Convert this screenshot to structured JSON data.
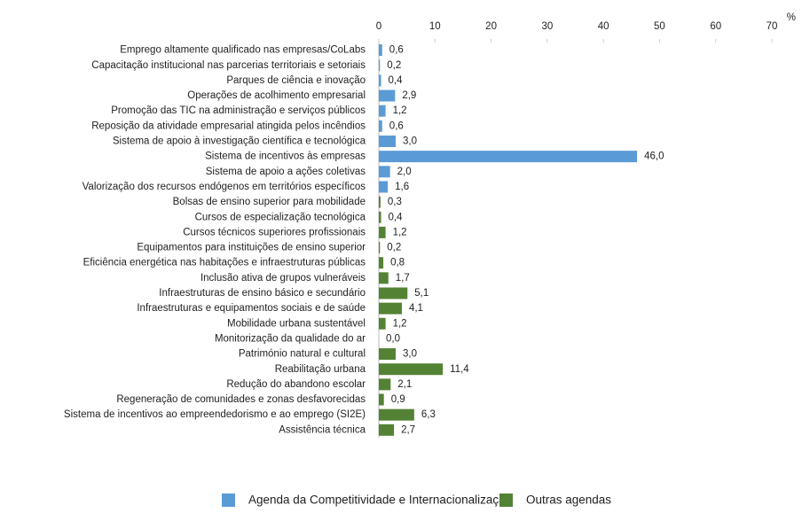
{
  "chart_data": {
    "type": "hbar",
    "x_label": "%",
    "categories": [
      "Emprego altamente qualificado nas empresas/CoLabs",
      "Capacitação institucional nas parcerias territoriais e setoriais",
      "Parques de ciência e inovação",
      "Operações de acolhimento empresarial",
      "Promoção das TIC na administração e serviços públicos",
      "Reposição da atividade empresarial atingida pelos incêndios",
      "Sistema de apoio à investigação científica e tecnológica",
      "Sistema de incentivos às empresas",
      "Sistema de apoio a ações coletivas",
      "Valorização dos recursos endógenos em territórios específicos",
      "Bolsas de ensino superior para mobilidade",
      "Cursos de especialização tecnológica",
      "Cursos técnicos superiores profissionais",
      "Equipamentos para instituições de ensino superior",
      "Eficiência energética nas habitações e infraestruturas públicas",
      "Inclusão ativa de grupos vulneráveis",
      "Infraestruturas de ensino básico e secundário",
      "Infraestruturas e equipamentos sociais e de saúde",
      "Mobilidade urbana sustentável",
      "Monitorização da qualidade do ar",
      "Património natural e cultural",
      "Reabilitação urbana",
      "Redução do abandono escolar",
      "Regeneração de comunidades e zonas desfavorecidas",
      "Sistema de incentivos ao empreendedorismo e ao emprego (SI2E)",
      "Assistência técnica"
    ],
    "series": [
      {
        "name": "Agenda da Competitividade e Internacionalização",
        "color": "#5b9bd5",
        "values": [
          0.6,
          0.2,
          0.4,
          2.9,
          1.2,
          0.6,
          3.0,
          46.0,
          2.0,
          1.6,
          null,
          null,
          null,
          null,
          null,
          null,
          null,
          null,
          null,
          null,
          null,
          null,
          null,
          null,
          null,
          null
        ],
        "value_labels": [
          "0,6",
          "0,2",
          "0,4",
          "2,9",
          "1,2",
          "0,6",
          "3,0",
          "46,0",
          "2,0",
          "1,6",
          null,
          null,
          null,
          null,
          null,
          null,
          null,
          null,
          null,
          null,
          null,
          null,
          null,
          null,
          null,
          null
        ]
      },
      {
        "name": "Outras agendas",
        "color": "#548235",
        "values": [
          null,
          null,
          null,
          null,
          null,
          null,
          null,
          null,
          null,
          null,
          0.3,
          0.4,
          1.2,
          0.2,
          0.8,
          1.7,
          5.1,
          4.1,
          1.2,
          0.0,
          3.0,
          11.4,
          2.1,
          0.9,
          6.3,
          2.7
        ],
        "value_labels": [
          null,
          null,
          null,
          null,
          null,
          null,
          null,
          null,
          null,
          null,
          "0,3",
          "0,4",
          "1,2",
          "0,2",
          "0,8",
          "1,7",
          "5,1",
          "4,1",
          "1,2",
          "0,0",
          "3,0",
          "11,4",
          "2,1",
          "0,9",
          "6,3",
          "2,7"
        ]
      }
    ],
    "xlim": [
      0,
      70
    ],
    "xticks": [
      0,
      10,
      20,
      30,
      40,
      50,
      60,
      70
    ]
  }
}
